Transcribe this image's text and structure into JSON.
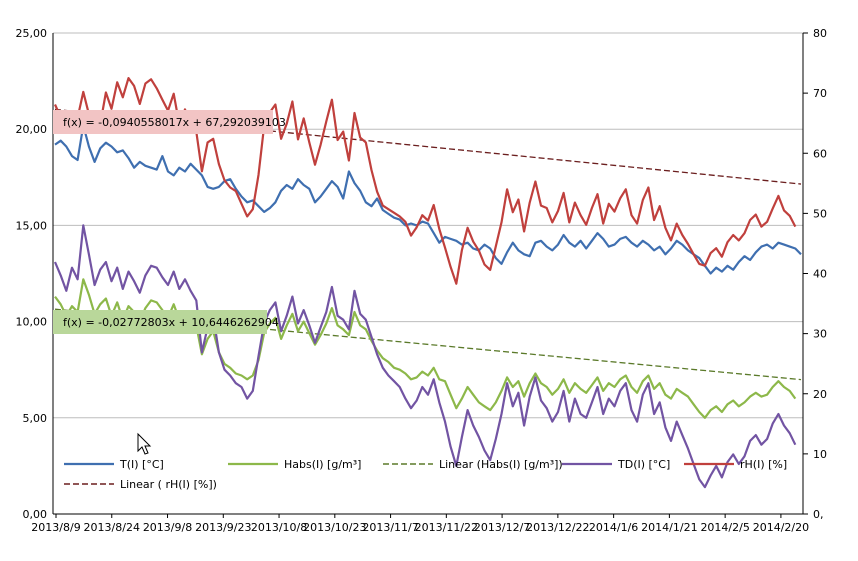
{
  "chart_data": {
    "type": "line",
    "x_tick_labels": [
      "2013/8/9",
      "2013/8/24",
      "2013/9/8",
      "2013/9/23",
      "2013/10/8",
      "2013/10/23",
      "2013/11/7",
      "2013/11/22",
      "2013/12/7",
      "2013/12/22",
      "2014/1/6",
      "2014/1/21",
      "2014/2/5",
      "2014/2/20"
    ],
    "y_left": {
      "ylim": [
        0,
        25
      ],
      "tick_labels": [
        "0,00",
        "5,00",
        "10,00",
        "15,00",
        "20,00",
        "25,00"
      ]
    },
    "y_right": {
      "ylim": [
        0,
        80
      ],
      "tick_labels": [
        "0,",
        "10",
        "20",
        "30",
        "40",
        "50",
        "60",
        "70",
        "80"
      ]
    },
    "grid": true,
    "colors": {
      "T": "#3f6fb0",
      "Habs": "#8db84a",
      "TD": "#7254a3",
      "rH": "#c0403d",
      "trend_habs": "#5b7a2a",
      "trend_rh": "#6b1e1e",
      "eq_rh_bg": "#f2c4c4",
      "eq_habs_bg": "#b9d79a"
    },
    "equations": {
      "rh": "f(x) = -0,0940558017x + 67,292039103",
      "habs": "f(x) = -0,02772803x + 10,6446262904"
    },
    "legend": [
      {
        "key": "T",
        "label": "T(I) [°C]",
        "style": "solid"
      },
      {
        "key": "Habs",
        "label": "Habs(I)  [g/m³]",
        "style": "solid"
      },
      {
        "key": "trend_habs",
        "label": "Linear (Habs(I)  [g/m³])",
        "style": "dashed"
      },
      {
        "key": "TD",
        "label": "TD(I)  [°C]",
        "style": "solid"
      },
      {
        "key": "rH",
        "label": "rH(I)  [%]",
        "style": "solid"
      },
      {
        "key": "trend_rh",
        "label": "Linear ( rH(I)  [%])",
        "style": "dashed"
      }
    ],
    "series": [
      {
        "key": "T",
        "axis": "left",
        "values": [
          19.2,
          19.4,
          19.1,
          18.6,
          18.4,
          20.2,
          19.1,
          18.3,
          19.0,
          19.3,
          19.1,
          18.8,
          18.9,
          18.5,
          18.0,
          18.3,
          18.1,
          18.0,
          17.9,
          18.6,
          17.8,
          17.6,
          18.0,
          17.8,
          18.2,
          17.9,
          17.6,
          17.0,
          16.9,
          17.0,
          17.3,
          17.4,
          16.9,
          16.5,
          16.2,
          16.3,
          16.0,
          15.7,
          15.9,
          16.2,
          16.8,
          17.1,
          16.9,
          17.4,
          17.1,
          16.9,
          16.2,
          16.5,
          16.9,
          17.3,
          17.0,
          16.4,
          17.8,
          17.2,
          16.8,
          16.2,
          16.0,
          16.4,
          15.8,
          15.6,
          15.4,
          15.3,
          15.0,
          15.1,
          15.0,
          15.2,
          15.1,
          14.6,
          14.1,
          14.4,
          14.3,
          14.2,
          14.0,
          14.1,
          13.8,
          13.7,
          14.0,
          13.8,
          13.3,
          13.0,
          13.6,
          14.1,
          13.7,
          13.5,
          13.4,
          14.1,
          14.2,
          13.9,
          13.7,
          14.0,
          14.5,
          14.1,
          13.9,
          14.2,
          13.8,
          14.2,
          14.6,
          14.3,
          13.9,
          14.0,
          14.3,
          14.4,
          14.1,
          13.9,
          14.2,
          14.0,
          13.7,
          13.9,
          13.5,
          13.8,
          14.2,
          14.0,
          13.7,
          13.5,
          13.3,
          12.9,
          12.5,
          12.8,
          12.6,
          12.9,
          12.7,
          13.1,
          13.4,
          13.2,
          13.6,
          13.9,
          14.0,
          13.8,
          14.1,
          14.0,
          13.9,
          13.8,
          13.5
        ]
      },
      {
        "key": "Habs",
        "axis": "left",
        "values": [
          11.3,
          10.9,
          10.3,
          10.8,
          10.5,
          12.2,
          11.4,
          10.4,
          10.9,
          11.2,
          10.3,
          11.0,
          10.1,
          10.8,
          10.5,
          10.0,
          10.7,
          11.1,
          11.0,
          10.6,
          10.2,
          10.9,
          10.1,
          10.5,
          10.1,
          9.8,
          8.3,
          9.1,
          9.5,
          8.4,
          7.8,
          7.6,
          7.3,
          7.2,
          7.0,
          7.2,
          8.0,
          9.4,
          9.9,
          10.2,
          9.1,
          9.8,
          10.4,
          9.5,
          10.0,
          9.4,
          8.8,
          9.3,
          9.9,
          10.7,
          9.8,
          9.6,
          9.3,
          10.5,
          9.8,
          9.6,
          9.0,
          8.5,
          8.1,
          7.9,
          7.6,
          7.5,
          7.3,
          7.0,
          7.1,
          7.4,
          7.2,
          7.6,
          7.0,
          6.9,
          6.2,
          5.5,
          6.0,
          6.6,
          6.2,
          5.8,
          5.6,
          5.4,
          5.8,
          6.4,
          7.1,
          6.6,
          6.9,
          6.1,
          6.8,
          7.3,
          6.8,
          6.6,
          6.2,
          6.5,
          7.0,
          6.3,
          6.8,
          6.5,
          6.3,
          6.7,
          7.1,
          6.4,
          6.8,
          6.6,
          7.0,
          7.2,
          6.6,
          6.3,
          6.9,
          7.2,
          6.5,
          6.8,
          6.2,
          6.0,
          6.5,
          6.3,
          6.1,
          5.7,
          5.3,
          5.0,
          5.4,
          5.6,
          5.3,
          5.7,
          5.9,
          5.6,
          5.8,
          6.1,
          6.3,
          6.1,
          6.2,
          6.6,
          6.9,
          6.6,
          6.4,
          6.0
        ]
      },
      {
        "key": "TD",
        "axis": "left",
        "values": [
          13.1,
          12.4,
          11.6,
          12.8,
          12.2,
          15.0,
          13.5,
          11.9,
          12.7,
          13.1,
          12.1,
          12.8,
          11.7,
          12.6,
          12.1,
          11.5,
          12.4,
          12.9,
          12.8,
          12.3,
          11.9,
          12.6,
          11.7,
          12.2,
          11.6,
          11.1,
          8.4,
          9.7,
          10.3,
          8.4,
          7.5,
          7.2,
          6.8,
          6.6,
          6.0,
          6.4,
          8.2,
          9.9,
          10.6,
          11.0,
          9.5,
          10.3,
          11.3,
          9.9,
          10.6,
          9.8,
          8.9,
          9.7,
          10.5,
          11.8,
          10.3,
          10.1,
          9.6,
          11.6,
          10.4,
          10.1,
          9.2,
          8.3,
          7.6,
          7.2,
          6.9,
          6.6,
          6.0,
          5.5,
          5.9,
          6.6,
          6.2,
          7.0,
          5.8,
          4.8,
          3.5,
          2.5,
          4.0,
          5.4,
          4.6,
          4.0,
          3.3,
          2.8,
          3.9,
          5.2,
          6.8,
          5.6,
          6.3,
          4.6,
          6.1,
          7.1,
          5.9,
          5.5,
          4.8,
          5.3,
          6.4,
          4.8,
          6.0,
          5.2,
          5.0,
          5.8,
          6.6,
          5.2,
          6.0,
          5.6,
          6.4,
          6.8,
          5.4,
          4.8,
          6.2,
          6.8,
          5.2,
          5.8,
          4.5,
          3.8,
          4.8,
          4.1,
          3.4,
          2.6,
          1.8,
          1.4,
          2.0,
          2.5,
          1.9,
          2.7,
          3.1,
          2.6,
          3.0,
          3.8,
          4.1,
          3.6,
          3.9,
          4.7,
          5.2,
          4.6,
          4.2,
          3.6
        ]
      },
      {
        "key": "rH",
        "axis": "right",
        "values": [
          68.1,
          66.0,
          65.1,
          66.2,
          65.9,
          70.2,
          66.5,
          64.2,
          64.8,
          70.1,
          67.4,
          71.8,
          69.3,
          72.5,
          71.2,
          68.2,
          71.6,
          72.3,
          70.8,
          68.9,
          67.1,
          69.9,
          64.8,
          67.3,
          64.6,
          63.6,
          57.0,
          61.8,
          62.4,
          58.2,
          55.5,
          54.3,
          53.7,
          51.6,
          49.5,
          50.7,
          56.4,
          64.5,
          66.8,
          68.1,
          62.4,
          64.9,
          68.6,
          62.3,
          65.8,
          61.8,
          58.1,
          61.4,
          65.3,
          68.9,
          62.2,
          63.6,
          58.8,
          66.7,
          62.6,
          61.8,
          57.2,
          53.6,
          51.3,
          50.7,
          50.1,
          49.5,
          48.6,
          46.3,
          47.7,
          49.7,
          48.8,
          51.4,
          47.4,
          44.3,
          41.1,
          38.3,
          43.9,
          47.6,
          45.3,
          43.8,
          41.5,
          40.6,
          44.5,
          48.5,
          54.0,
          50.2,
          52.3,
          47.0,
          51.8,
          55.3,
          51.3,
          50.9,
          48.5,
          50.4,
          53.4,
          48.5,
          51.8,
          49.7,
          48.1,
          50.9,
          53.2,
          48.3,
          51.6,
          50.3,
          52.5,
          54.0,
          49.7,
          48.3,
          52.2,
          54.3,
          48.9,
          51.2,
          47.6,
          45.5,
          48.3,
          46.4,
          44.9,
          43.2,
          41.6,
          41.3,
          43.4,
          44.2,
          42.8,
          45.2,
          46.4,
          45.5,
          46.7,
          48.9,
          49.8,
          47.8,
          48.6,
          50.8,
          52.9,
          50.5,
          49.6,
          47.8
        ]
      }
    ],
    "trendlines": [
      {
        "key": "trend_habs",
        "axis": "left",
        "start": 10.6446262904,
        "slope": -0.02772803
      },
      {
        "key": "trend_rh",
        "axis": "right",
        "start": 67.292039103,
        "slope": -0.0940558017
      }
    ]
  }
}
